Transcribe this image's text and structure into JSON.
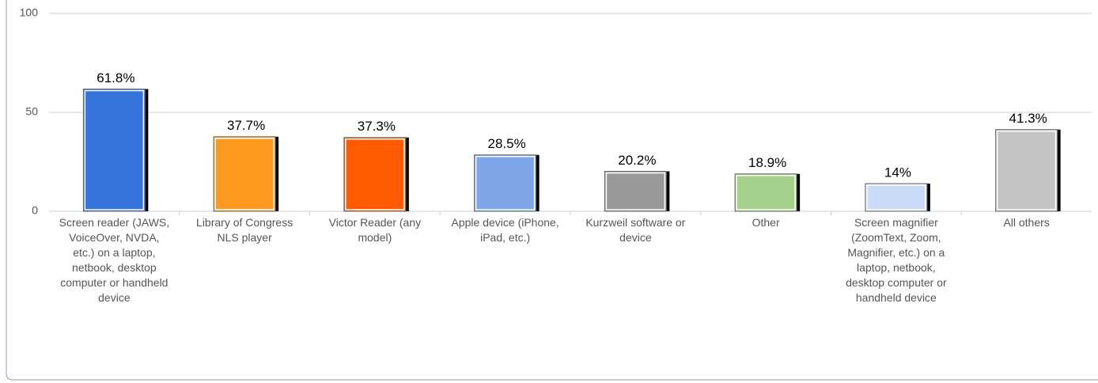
{
  "chart_data": {
    "type": "bar",
    "categories": [
      "Screen reader (JAWS, VoiceOver, NVDA, etc.) on a laptop, netbook, desktop computer or handheld device",
      "Library of Congress NLS player",
      "Victor Reader (any model)",
      "Apple device (iPhone, iPad, etc.)",
      "Kurzweil software or device",
      "Other",
      "Screen magnifier (ZoomText, Zoom, Magnifier, etc.) on a laptop, netbook, desktop computer or handheld device",
      "All others"
    ],
    "values": [
      61.8,
      37.7,
      37.3,
      28.5,
      20.2,
      18.9,
      14,
      41.3
    ],
    "value_labels": [
      "61.8%",
      "37.7%",
      "37.3%",
      "28.5%",
      "20.2%",
      "18.9%",
      "14%",
      "41.3%"
    ],
    "colors": [
      "#3574db",
      "#ff9a20",
      "#ff5a00",
      "#7ea6e8",
      "#999999",
      "#a6d18c",
      "#c9dbf7",
      "#c4c4c4"
    ],
    "ylim": [
      0,
      100
    ],
    "yticks": [
      0,
      50,
      100
    ],
    "grid": true
  }
}
